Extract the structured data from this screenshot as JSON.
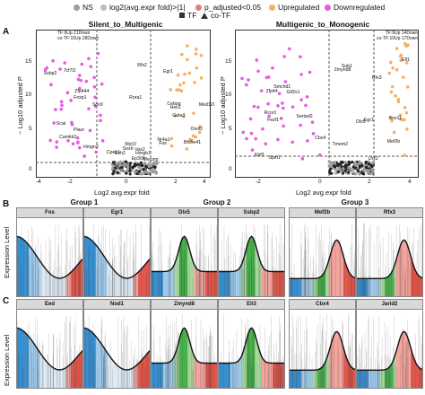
{
  "legend": {
    "items": [
      {
        "label": "NS",
        "color": "#9e9e9e"
      },
      {
        "label": "log2(avg.expr fold)>|1|",
        "color": "#bdbdbd"
      },
      {
        "label": "p_adjusted<0.05",
        "color": "#e08080"
      },
      {
        "label": "Upregulated",
        "color": "#f4b066"
      },
      {
        "label": "Downregulated",
        "color": "#e35de0"
      }
    ],
    "shape_items": [
      {
        "label": "TF",
        "shape": "square"
      },
      {
        "label": "co-TF",
        "shape": "triangle"
      }
    ]
  },
  "panelA": {
    "letter": "A",
    "plots": [
      {
        "title": "Silent_to_Multigenic",
        "note": "TF:9Up 21Down\nco-TF:15Up 28Down",
        "xticks": [
          "-4",
          "-2",
          "0",
          "2",
          "4"
        ],
        "yticks": [
          "0",
          "5",
          "10",
          "15"
        ],
        "genes": [
          "Cpeb1",
          "Myt1l",
          "Rora1",
          "Ssbp2",
          "Med12l",
          "Camkk2",
          "Sox6",
          "Scat",
          "Cebpg",
          "Zfp444",
          "Plaur",
          "Bhlhe41",
          "Ezh2",
          "Mecom",
          "Egr1",
          "Hmgb1",
          "Nr4a1",
          "Fos",
          "Ovol2",
          "Hes1",
          "Tcf7l2",
          "Gata3",
          "Foxp1",
          "Sox9",
          "Vax2",
          "Hmgn2",
          "Rfx2",
          "Ep300"
        ]
      },
      {
        "title": "Multigenic_to_Monogenic",
        "note": "TF:9Up 14Down\nco-TF:10Up 17Down",
        "xticks": [
          "-2",
          "0",
          "2",
          "4"
        ],
        "yticks": [
          "0",
          "5",
          "10",
          "15"
        ],
        "genes": [
          "Zmynd8",
          "Dlx5",
          "Sertad2",
          "Rcor1",
          "Smchd1",
          "Cbx4",
          "Rfx3",
          "Mef2b",
          "Tmem2",
          "Sox11",
          "Zfp44",
          "Elf1",
          "Lhx2",
          "Gif2s1",
          "Ebf3",
          "Egr1",
          "Sub1",
          "Fezf1",
          "Spin1"
        ]
      }
    ],
    "xlabel": "Log2 avg.expr fold",
    "ylabel": "− Log10 adjusted P"
  },
  "panelB": {
    "letter": "B",
    "groups": [
      {
        "title": "Group 1",
        "genes": [
          "Fos",
          "Egr1"
        ]
      },
      {
        "title": "Group 2",
        "genes": [
          "Dlx5",
          "Ssbp2"
        ]
      },
      {
        "title": "Group 3",
        "genes": [
          "Mef2b",
          "Rfx3"
        ]
      }
    ],
    "ylabel": "Expression Level"
  },
  "panelC": {
    "letter": "C",
    "genes": [
      "Eed",
      "Nod1",
      "Zmynd8",
      "Eli3",
      "Cbx4",
      "Jarid2"
    ],
    "ylabel": "Expression Level"
  },
  "colors": {
    "blue": "#3a8fd0",
    "green": "#46b04a",
    "red": "#e2574c",
    "pink": "#f2a49d",
    "lightblue": "#9fc9ea",
    "lightgreen": "#a6d79d"
  }
}
